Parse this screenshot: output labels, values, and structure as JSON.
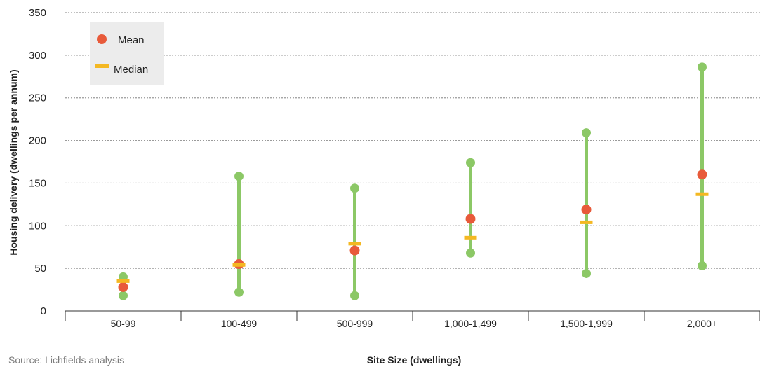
{
  "chart_data": {
    "type": "range",
    "xlabel": "Site Size (dwellings)",
    "ylabel": "Housing delivery (dwellings per annum)",
    "ylim": [
      0,
      350
    ],
    "yticks": [
      0,
      50,
      100,
      150,
      200,
      250,
      300,
      350
    ],
    "grid": true,
    "legend_position": "top-left",
    "categories": [
      "50-99",
      "100-499",
      "500-999",
      "1,000-1,499",
      "1,500-1,999",
      "2,000+"
    ],
    "series": [
      {
        "name": "Range minimum",
        "values": [
          18,
          22,
          18,
          68,
          44,
          53
        ]
      },
      {
        "name": "Range maximum",
        "values": [
          40,
          158,
          144,
          174,
          209,
          286
        ]
      },
      {
        "name": "Mean",
        "values": [
          28,
          55,
          71,
          108,
          119,
          160
        ]
      },
      {
        "name": "Median",
        "values": [
          35,
          54,
          79,
          86,
          104,
          137
        ]
      }
    ],
    "legend": [
      {
        "label": "Mean",
        "marker": "circle",
        "color": "#e85a3a"
      },
      {
        "label": "Median",
        "marker": "dash",
        "color": "#f4b822"
      }
    ]
  },
  "colors": {
    "range": "#8cc866",
    "mean": "#e85a3a",
    "median": "#f4b822",
    "grid": "#9a9a9a",
    "legend_bg": "#ececec"
  },
  "source": "Source: Lichfields analysis"
}
